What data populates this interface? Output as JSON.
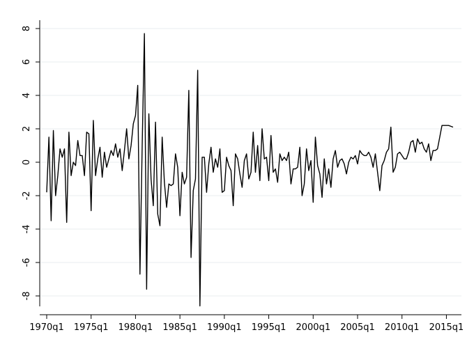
{
  "chart_data": {
    "type": "line",
    "color": "#000000",
    "grid": true,
    "x": [
      "1970q1",
      "1970q2",
      "1970q3",
      "1970q4",
      "1971q1",
      "1971q2",
      "1971q3",
      "1971q4",
      "1972q1",
      "1972q2",
      "1972q3",
      "1972q4",
      "1973q1",
      "1973q2",
      "1973q3",
      "1973q4",
      "1974q1",
      "1974q2",
      "1974q3",
      "1974q4",
      "1975q1",
      "1975q2",
      "1975q3",
      "1975q4",
      "1976q1",
      "1976q2",
      "1976q3",
      "1976q4",
      "1977q1",
      "1977q2",
      "1977q3",
      "1977q4",
      "1978q1",
      "1978q2",
      "1978q3",
      "1978q4",
      "1979q1",
      "1979q2",
      "1979q3",
      "1979q4",
      "1980q1",
      "1980q2",
      "1980q3",
      "1980q4",
      "1981q1",
      "1981q2",
      "1981q3",
      "1981q4",
      "1982q1",
      "1982q2",
      "1982q3",
      "1982q4",
      "1983q1",
      "1983q2",
      "1983q3",
      "1983q4",
      "1984q1",
      "1984q2",
      "1984q3",
      "1984q4",
      "1985q1",
      "1985q2",
      "1985q3",
      "1985q4",
      "1986q1",
      "1986q2",
      "1986q3",
      "1986q4",
      "1987q1",
      "1987q2",
      "1987q3",
      "1987q4",
      "1988q1",
      "1988q2",
      "1988q3",
      "1988q4",
      "1989q1",
      "1989q2",
      "1989q3",
      "1989q4",
      "1990q1",
      "1990q2",
      "1990q3",
      "1990q4",
      "1991q1",
      "1991q2",
      "1991q3",
      "1991q4",
      "1992q1",
      "1992q2",
      "1992q3",
      "1992q4",
      "1993q1",
      "1993q2",
      "1993q3",
      "1993q4",
      "1994q1",
      "1994q2",
      "1994q3",
      "1994q4",
      "1995q1",
      "1995q2",
      "1995q3",
      "1995q4",
      "1996q1",
      "1996q2",
      "1996q3",
      "1996q4",
      "1997q1",
      "1997q2",
      "1997q3",
      "1997q4",
      "1998q1",
      "1998q2",
      "1998q3",
      "1998q4",
      "1999q1",
      "1999q2",
      "1999q3",
      "1999q4",
      "2000q1",
      "2000q2",
      "2000q3",
      "2000q4",
      "2001q1",
      "2001q2",
      "2001q3",
      "2001q4",
      "2002q1",
      "2002q2",
      "2002q3",
      "2002q4",
      "2003q1",
      "2003q2",
      "2003q3",
      "2003q4",
      "2004q1",
      "2004q2",
      "2004q3",
      "2004q4",
      "2005q1",
      "2005q2",
      "2005q3",
      "2005q4",
      "2006q1",
      "2006q2",
      "2006q3",
      "2006q4",
      "2007q1",
      "2007q2",
      "2007q3",
      "2007q4",
      "2008q1",
      "2008q2",
      "2008q3",
      "2008q4",
      "2009q1",
      "2009q2",
      "2009q3",
      "2009q4",
      "2010q1",
      "2010q2",
      "2010q3",
      "2010q4",
      "2011q1",
      "2011q2",
      "2011q3",
      "2011q4",
      "2012q1",
      "2012q2",
      "2012q3",
      "2012q4",
      "2013q1",
      "2013q2",
      "2013q3",
      "2013q4",
      "2014q1",
      "2014q2",
      "2014q3",
      "2014q4",
      "2015q1",
      "2015q2",
      "2015q3",
      "2015q4"
    ],
    "values": [
      -1.8,
      1.5,
      -3.5,
      1.9,
      -2.0,
      -0.8,
      0.8,
      0.3,
      0.8,
      -3.6,
      1.8,
      -0.8,
      0,
      -0.2,
      1.3,
      0.4,
      0.4,
      -0.8,
      1.8,
      1.7,
      -2.9,
      2.5,
      -0.8,
      0.2,
      0.9,
      -0.9,
      0.6,
      -0.3,
      0.2,
      0.7,
      0.4,
      1.1,
      0.3,
      0.8,
      -0.5,
      0.7,
      2.0,
      0.2,
      1.0,
      2.3,
      2.8,
      4.6,
      -6.7,
      1.0,
      7.7,
      -7.6,
      2.9,
      -1.0,
      -2.6,
      2.4,
      -3.1,
      -3.8,
      1.5,
      -1.2,
      -2.7,
      -1.3,
      -1.4,
      -1.3,
      0.5,
      -0.3,
      -3.2,
      -0.6,
      -1.3,
      -0.9,
      4.3,
      -5.7,
      -1.7,
      -1.0,
      5.5,
      -8.6,
      0.3,
      0.3,
      -1.8,
      -0.1,
      0.9,
      -0.6,
      0.2,
      -0.3,
      0.8,
      -1.8,
      -1.7,
      0.3,
      -0.2,
      -0.5,
      -2.6,
      0.5,
      0.2,
      -0.7,
      -1.5,
      0.1,
      0.5,
      -1.0,
      -0.6,
      1.8,
      -0.6,
      1.0,
      -1.1,
      2.0,
      0.2,
      0.3,
      -1.1,
      1.6,
      -0.6,
      -0.4,
      -1.2,
      0.5,
      0.1,
      0.3,
      0.1,
      0.6,
      -1.3,
      -0.4,
      -0.4,
      -0.3,
      0.9,
      -2.0,
      -1.3,
      0.8,
      -0.5,
      0.1,
      -2.4,
      1.5,
      -0.2,
      -0.7,
      -2.1,
      0.2,
      -1.3,
      -0.4,
      -1.5,
      0.2,
      0.7,
      -0.3,
      0.1,
      0.2,
      -0.1,
      -0.7,
      0.0,
      0.3,
      0.2,
      0.4,
      -0.1,
      0.7,
      0.5,
      0.4,
      0.4,
      0.6,
      0.3,
      -0.3,
      0.5,
      -0.6,
      -1.7,
      -0.2,
      0.1,
      0.6,
      0.8,
      2.1,
      -0.6,
      -0.3,
      0.5,
      0.6,
      0.4,
      0.2,
      0.2,
      0.6,
      1.2,
      1.3,
      0.6,
      1.4,
      1.1,
      1.2,
      0.8,
      0.6,
      1.1,
      0.1,
      0.7,
      0.7,
      0.8,
      1.5,
      2.2,
      2.2,
      2.2,
      2.2,
      2.15,
      2.1
    ],
    "xlim": [
      "1970q1",
      "2015q4"
    ],
    "xticks": [
      "1970q1",
      "1975q1",
      "1980q1",
      "1985q1",
      "1990q1",
      "1995q1",
      "2000q1",
      "2005q1",
      "2010q1",
      "2015q1"
    ],
    "ylim": [
      -8.5,
      8.5
    ],
    "yticks": [
      -8,
      -6,
      -4,
      -2,
      0,
      2,
      4,
      6,
      8
    ]
  }
}
